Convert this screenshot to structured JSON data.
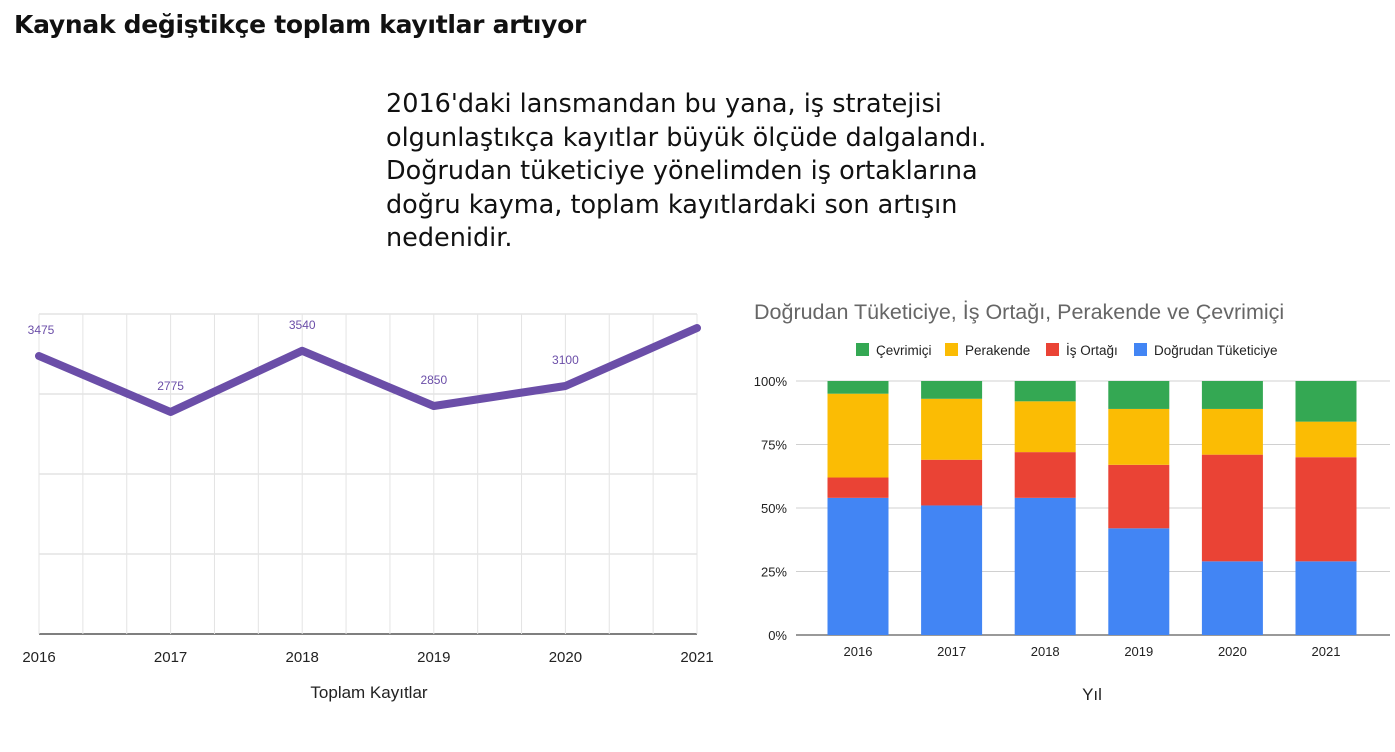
{
  "page": {
    "title": "Kaynak değiştikçe toplam kayıtlar artıyor",
    "intro": "2016'daki lansmandan bu yana, iş stratejisi olgunlaştıkça kayıtlar büyük ölçüde dalgalandı. Doğrudan tüketiciye yönelimden iş ortaklarına doğru kayma, toplam kayıtlardaki son artışın nedenidir."
  },
  "chart_data": [
    {
      "type": "line",
      "title": "",
      "xlabel": "Toplam Kayıtlar",
      "ylabel": "",
      "categories": [
        "2016",
        "2017",
        "2018",
        "2019",
        "2020",
        "2021"
      ],
      "series": [
        {
          "values": [
            3475,
            2775,
            3540,
            2850,
            3100,
            3825
          ],
          "data_labels": [
            "3475",
            "2775",
            "3540",
            "2850",
            "3100",
            ""
          ],
          "color": "#6B4EA8"
        }
      ],
      "ylim": [
        0,
        4000
      ],
      "grid": true,
      "legend": "none"
    },
    {
      "type": "bar",
      "stacked": "percent",
      "title": "Doğrudan Tüketiciye, İş Ortağı, Perakende ve Çevrimiçi",
      "xlabel": "Yıl",
      "ylabel": "",
      "categories": [
        "2016",
        "2017",
        "2018",
        "2019",
        "2020",
        "2021"
      ],
      "series": [
        {
          "name": "Doğrudan Tüketiciye",
          "color": "#4285F4",
          "values": [
            54,
            51,
            54,
            42,
            29,
            29
          ]
        },
        {
          "name": "İş Ortağı",
          "color": "#EA4335",
          "values": [
            8,
            18,
            18,
            25,
            42,
            41
          ]
        },
        {
          "name": "Perakende",
          "color": "#FBBC04",
          "values": [
            33,
            24,
            20,
            22,
            18,
            14
          ]
        },
        {
          "name": "Çevrimiçi",
          "color": "#34A853",
          "values": [
            5,
            7,
            8,
            11,
            11,
            16
          ]
        }
      ],
      "legend_order": [
        "Çevrimiçi",
        "Perakende",
        "İş Ortağı",
        "Doğrudan Tüketiciye"
      ],
      "yticks": [
        "0%",
        "25%",
        "50%",
        "75%",
        "100%"
      ],
      "ylim": [
        0,
        100
      ],
      "grid": true,
      "legend": "top"
    }
  ]
}
